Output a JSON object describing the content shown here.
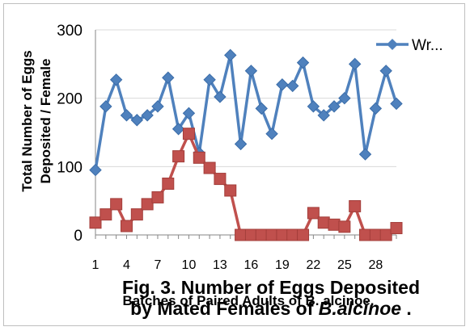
{
  "chart_data": {
    "type": "line",
    "title": "",
    "xlabel": "Batches of Paired Adults of B. alcinoe.",
    "ylabel": "Total Number of Eggs Deposited / Female",
    "ylim": [
      0,
      300
    ],
    "y_ticks": [
      "0",
      "100",
      "200",
      "300"
    ],
    "x_tick_labels": [
      "1",
      "4",
      "7",
      "10",
      "13",
      "16",
      "19",
      "22",
      "25",
      "28"
    ],
    "x_tick_values": [
      1,
      4,
      7,
      10,
      13,
      16,
      19,
      22,
      25,
      28
    ],
    "x": [
      1,
      2,
      3,
      4,
      5,
      6,
      7,
      8,
      9,
      10,
      11,
      12,
      13,
      14,
      15,
      16,
      17,
      18,
      19,
      20,
      21,
      22,
      23,
      24,
      25,
      26,
      27,
      28,
      29,
      30
    ],
    "legend_position": "top-right",
    "series": [
      {
        "name": "Wr...",
        "color": "#4f81bd",
        "marker": "diamond",
        "values": [
          95,
          188,
          227,
          175,
          168,
          175,
          188,
          230,
          155,
          178,
          120,
          227,
          202,
          263,
          133,
          240,
          185,
          148,
          220,
          218,
          252,
          188,
          175,
          188,
          200,
          250,
          118,
          185,
          240,
          192
        ]
      },
      {
        "name": "",
        "color": "#c0504d",
        "marker": "square",
        "values": [
          18,
          30,
          45,
          13,
          30,
          45,
          55,
          75,
          115,
          148,
          113,
          98,
          82,
          65,
          0,
          0,
          0,
          0,
          0,
          0,
          0,
          32,
          18,
          15,
          12,
          42,
          0,
          0,
          0,
          10
        ]
      }
    ]
  },
  "caption": {
    "line1": "Fig. 3. Number of Eggs Deposited",
    "line2_prefix": "by Mated Females of ",
    "line2_species": "B.alcinoe",
    "line2_suffix": " ."
  }
}
